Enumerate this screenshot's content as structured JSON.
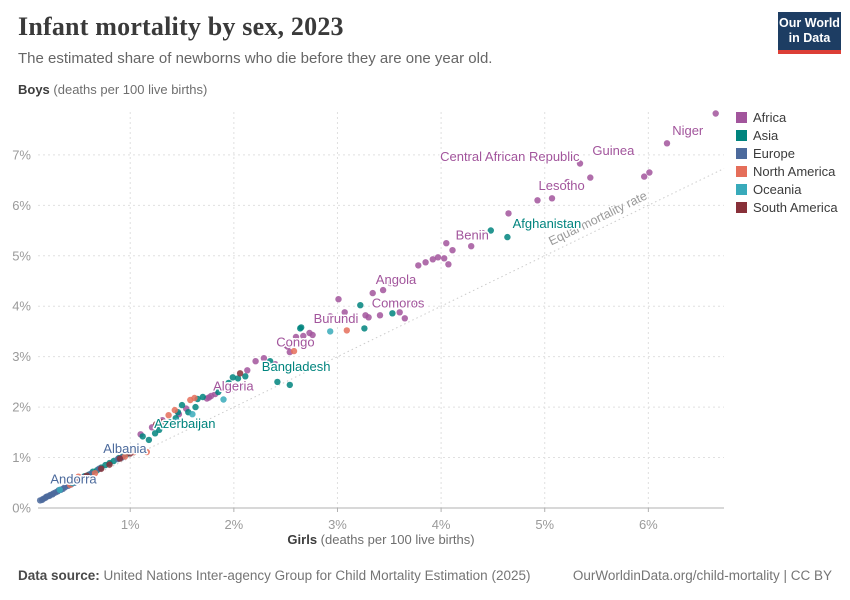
{
  "header": {
    "title": "Infant mortality by sex, 2023",
    "subtitle": "The estimated share of newborns who die before they are one year old.",
    "logo": {
      "line1": "Our World",
      "line2": "in Data",
      "bg": "#1d3d63",
      "accent": "#dc3e36"
    }
  },
  "chart_data": {
    "type": "scatter",
    "title": "Infant mortality by sex, 2023",
    "xlabel_bold": "Girls",
    "xlabel_rest": " (deaths per 100 live births)",
    "ylabel_bold": "Boys",
    "ylabel_rest": " (deaths per 100 live births)",
    "xlim": [
      0.11,
      6.73
    ],
    "ylim": [
      0,
      7.85
    ],
    "x_ticks": [
      1,
      2,
      3,
      4,
      5,
      6
    ],
    "y_ticks": [
      0,
      1,
      2,
      3,
      4,
      5,
      6,
      7
    ],
    "tick_suffix": "%",
    "grid": "dashed",
    "legend_position": "right",
    "equal_line": {
      "label": "Equal mortality rate",
      "from": 0.13,
      "to": 6.73,
      "label_at": 5.53
    },
    "legend": [
      {
        "label": "Africa",
        "color": "#a2559c"
      },
      {
        "label": "Asia",
        "color": "#00847e"
      },
      {
        "label": "Europe",
        "color": "#4c6a9c"
      },
      {
        "label": "North America",
        "color": "#e56e5a"
      },
      {
        "label": "Oceania",
        "color": "#38aaba"
      },
      {
        "label": "South America",
        "color": "#883039"
      }
    ],
    "series": [
      {
        "name": "Africa",
        "color": "#a2559c",
        "points": [
          [
            1.1,
            1.46
          ],
          [
            1.21,
            1.6
          ],
          [
            1.31,
            1.74
          ],
          [
            1.47,
            1.86
          ],
          [
            1.54,
            1.97
          ],
          [
            1.74,
            2.17
          ],
          [
            1.76,
            2.19
          ],
          [
            1.78,
            2.22
          ],
          [
            1.82,
            2.26
          ],
          [
            1.97,
            2.36
          ],
          [
            2.13,
            2.73
          ],
          [
            2.21,
            2.91
          ],
          [
            2.29,
            2.97
          ],
          [
            2.4,
            2.85
          ],
          [
            2.5,
            3.23
          ],
          [
            2.52,
            3.2
          ],
          [
            2.54,
            3.09
          ],
          [
            2.6,
            3.39
          ],
          [
            2.67,
            3.41
          ],
          [
            2.73,
            3.47
          ],
          [
            2.76,
            3.43
          ],
          [
            2.85,
            3.76
          ],
          [
            2.93,
            3.8
          ],
          [
            3.01,
            4.14
          ],
          [
            3.07,
            3.88
          ],
          [
            3.27,
            3.82
          ],
          [
            3.3,
            3.78
          ],
          [
            3.41,
            3.82
          ],
          [
            3.6,
            3.88
          ],
          [
            3.65,
            3.76
          ],
          [
            3.73,
            4.02
          ],
          [
            3.34,
            4.26
          ],
          [
            3.44,
            4.32
          ],
          [
            3.51,
            4.46
          ],
          [
            3.78,
            4.81
          ],
          [
            3.85,
            4.87
          ],
          [
            3.92,
            4.93
          ],
          [
            3.97,
            4.97
          ],
          [
            4.03,
            4.95
          ],
          [
            4.07,
            4.83
          ],
          [
            4.05,
            5.25
          ],
          [
            4.11,
            5.11
          ],
          [
            4.29,
            5.19
          ],
          [
            4.4,
            5.45
          ],
          [
            4.65,
            5.84
          ],
          [
            4.93,
            6.1
          ],
          [
            5.07,
            6.14
          ],
          [
            5.22,
            6.46
          ],
          [
            5.44,
            6.55
          ],
          [
            5.34,
            6.83
          ],
          [
            5.96,
            6.57
          ],
          [
            6.01,
            6.65
          ],
          [
            6.18,
            7.23
          ],
          [
            6.65,
            7.82
          ]
        ]
      },
      {
        "name": "Asia",
        "color": "#00847e",
        "points": [
          [
            0.48,
            0.54
          ],
          [
            0.56,
            0.63
          ],
          [
            0.6,
            0.66
          ],
          [
            0.64,
            0.72
          ],
          [
            0.68,
            0.75
          ],
          [
            0.72,
            0.8
          ],
          [
            0.76,
            0.85
          ],
          [
            0.8,
            0.89
          ],
          [
            0.84,
            0.93
          ],
          [
            0.89,
            0.99
          ],
          [
            0.93,
            1.03
          ],
          [
            0.97,
            1.07
          ],
          [
            1.01,
            1.12
          ],
          [
            1.05,
            1.16
          ],
          [
            1.12,
            1.42
          ],
          [
            1.18,
            1.35
          ],
          [
            1.24,
            1.48
          ],
          [
            1.28,
            1.55
          ],
          [
            1.33,
            1.62
          ],
          [
            1.38,
            1.7
          ],
          [
            1.44,
            1.78
          ],
          [
            1.46,
            1.9
          ],
          [
            1.5,
            2.04
          ],
          [
            1.56,
            1.9
          ],
          [
            1.63,
            2.0
          ],
          [
            1.65,
            2.16
          ],
          [
            1.7,
            2.2
          ],
          [
            1.85,
            2.3
          ],
          [
            1.95,
            2.48
          ],
          [
            1.99,
            2.59
          ],
          [
            2.04,
            2.57
          ],
          [
            2.11,
            2.61
          ],
          [
            2.35,
            2.91
          ],
          [
            2.42,
            2.5
          ],
          [
            2.54,
            2.44
          ],
          [
            2.64,
            3.56
          ],
          [
            2.65,
            3.58
          ],
          [
            3.26,
            3.56
          ],
          [
            3.22,
            4.02
          ],
          [
            3.53,
            3.86
          ],
          [
            4.48,
            5.5
          ],
          [
            4.64,
            5.37
          ]
        ]
      },
      {
        "name": "Europe",
        "color": "#4c6a9c",
        "points": [
          [
            0.13,
            0.15
          ],
          [
            0.15,
            0.16
          ],
          [
            0.16,
            0.18
          ],
          [
            0.18,
            0.2
          ],
          [
            0.19,
            0.22
          ],
          [
            0.2,
            0.23
          ],
          [
            0.22,
            0.24
          ],
          [
            0.23,
            0.26
          ],
          [
            0.25,
            0.27
          ],
          [
            0.26,
            0.29
          ],
          [
            0.28,
            0.31
          ],
          [
            0.3,
            0.33
          ],
          [
            0.31,
            0.35
          ],
          [
            0.33,
            0.36
          ],
          [
            0.35,
            0.38
          ],
          [
            0.37,
            0.41
          ],
          [
            0.4,
            0.44
          ],
          [
            0.43,
            0.47
          ],
          [
            0.46,
            0.5
          ],
          [
            0.5,
            0.55
          ],
          [
            0.55,
            0.61
          ],
          [
            0.62,
            0.68
          ],
          [
            0.7,
            0.78
          ],
          [
            0.88,
            0.97
          ],
          [
            0.92,
            1.0
          ]
        ]
      },
      {
        "name": "North America",
        "color": "#e56e5a",
        "points": [
          [
            0.42,
            0.46
          ],
          [
            0.5,
            0.62
          ],
          [
            0.52,
            0.57
          ],
          [
            0.66,
            0.69
          ],
          [
            0.95,
            1.02
          ],
          [
            1.04,
            1.11
          ],
          [
            1.1,
            1.18
          ],
          [
            1.16,
            1.11
          ],
          [
            1.37,
            1.84
          ],
          [
            1.43,
            1.94
          ],
          [
            1.58,
            2.14
          ],
          [
            1.62,
            2.18
          ],
          [
            2.58,
            3.11
          ],
          [
            3.09,
            3.52
          ]
        ]
      },
      {
        "name": "Oceania",
        "color": "#38aaba",
        "points": [
          [
            0.32,
            0.36
          ],
          [
            0.44,
            0.5
          ],
          [
            1.45,
            1.72
          ],
          [
            1.6,
            1.86
          ],
          [
            1.9,
            2.15
          ],
          [
            2.1,
            2.42
          ],
          [
            2.93,
            3.5
          ]
        ]
      },
      {
        "name": "South America",
        "color": "#883039",
        "points": [
          [
            0.5,
            0.53
          ],
          [
            0.58,
            0.64
          ],
          [
            0.72,
            0.78
          ],
          [
            0.8,
            0.86
          ],
          [
            0.9,
            0.98
          ],
          [
            1.0,
            1.08
          ],
          [
            1.25,
            1.66
          ],
          [
            1.31,
            1.7
          ],
          [
            2.06,
            2.67
          ]
        ]
      }
    ],
    "point_labels": [
      {
        "text": "Niger",
        "x": 6.23,
        "y": 7.39,
        "color": "#a2559c"
      },
      {
        "text": "Guinea",
        "x": 5.46,
        "y": 7.0,
        "color": "#a2559c"
      },
      {
        "text": "Central African Republic",
        "x": 3.99,
        "y": 6.88,
        "color": "#a2559c"
      },
      {
        "text": "Lesotho",
        "x": 4.94,
        "y": 6.3,
        "color": "#a2559c"
      },
      {
        "text": "Afghanistan",
        "x": 4.69,
        "y": 5.55,
        "color": "#00847e"
      },
      {
        "text": "Benin",
        "x": 4.14,
        "y": 5.32,
        "color": "#a2559c"
      },
      {
        "text": "Angola",
        "x": 3.37,
        "y": 4.44,
        "color": "#a2559c"
      },
      {
        "text": "Comoros",
        "x": 3.33,
        "y": 3.97,
        "color": "#a2559c"
      },
      {
        "text": "Burundi",
        "x": 2.77,
        "y": 3.67,
        "color": "#a2559c"
      },
      {
        "text": "Congo",
        "x": 2.41,
        "y": 3.2,
        "color": "#a2559c"
      },
      {
        "text": "Bangladesh",
        "x": 2.27,
        "y": 2.72,
        "color": "#00847e"
      },
      {
        "text": "Algeria",
        "x": 1.8,
        "y": 2.33,
        "color": "#a2559c"
      },
      {
        "text": "Azerbaijan",
        "x": 1.23,
        "y": 1.59,
        "color": "#00847e"
      },
      {
        "text": "Albania",
        "x": 0.74,
        "y": 1.09,
        "color": "#4c6a9c"
      },
      {
        "text": "Andorra",
        "x": 0.23,
        "y": 0.49,
        "color": "#4c6a9c"
      }
    ]
  },
  "footer": {
    "source_label": "Data source:",
    "source_text": " United Nations Inter-agency Group for Child Mortality Estimation (2025)",
    "right_text": "OurWorldinData.org/child-mortality | CC BY"
  }
}
